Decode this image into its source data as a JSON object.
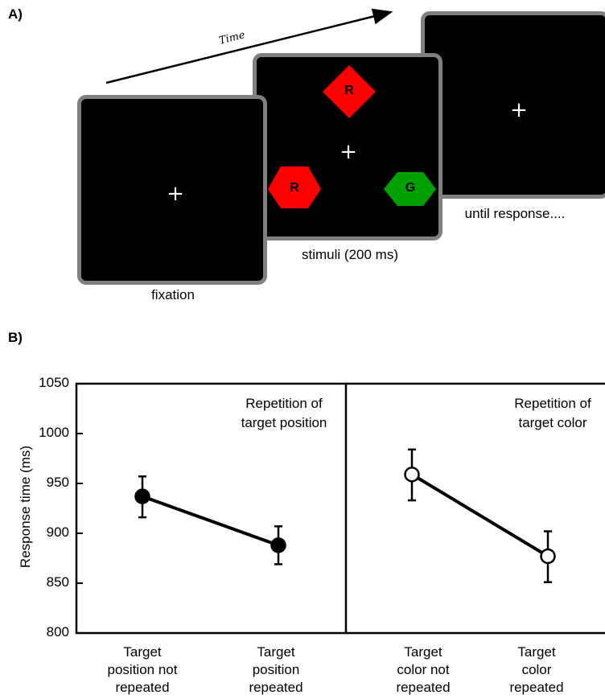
{
  "panel_a": {
    "label": "A)",
    "time_label": "Time",
    "fixation": {
      "cross": "+",
      "caption": "fixation"
    },
    "stimuli": {
      "cross": "+",
      "caption": "stimuli (200 ms)",
      "items": [
        {
          "letter": "R",
          "color": "#ff0000",
          "shape": "diamond"
        },
        {
          "letter": "R",
          "color": "#ff0000",
          "shape": "truncated-diamond"
        },
        {
          "letter": "G",
          "color": "#00a000",
          "shape": "truncated-diamond"
        }
      ]
    },
    "response": {
      "cross": "+",
      "caption": "until response...."
    }
  },
  "panel_b": {
    "label": "B)"
  },
  "chart_data": {
    "type": "line",
    "ylabel": "Response time (ms)",
    "ylim": [
      800,
      1050
    ],
    "yticks": [
      800,
      850,
      900,
      950,
      1000,
      1050
    ],
    "subplots": [
      {
        "annotation": [
          "Repetition of",
          "target position"
        ],
        "categories": [
          [
            "Target",
            "position not",
            "repeated"
          ],
          [
            "Target",
            "position",
            "repeated"
          ]
        ],
        "marker": "filled",
        "values": [
          937,
          888
        ],
        "error": [
          [
            916,
            957
          ],
          [
            869,
            907
          ]
        ]
      },
      {
        "annotation": [
          "Repetition of",
          "target color"
        ],
        "categories": [
          [
            "Target",
            "color not",
            "repeated"
          ],
          [
            "Target",
            "color",
            "repeated"
          ]
        ],
        "marker": "open",
        "values": [
          959,
          877
        ],
        "error": [
          [
            933,
            984
          ],
          [
            851,
            902
          ]
        ]
      }
    ]
  }
}
